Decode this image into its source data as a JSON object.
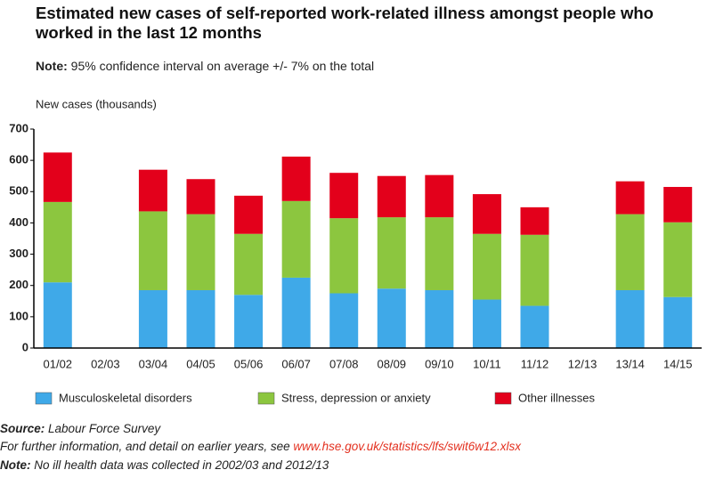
{
  "chart_data": {
    "type": "stacked-bar",
    "title": "Estimated new cases of self-reported work-related illness amongst people who worked in the last 12 months",
    "note": {
      "label": "Note:",
      "text": "95% confidence interval on average +/- 7% on the total"
    },
    "ylabel": "New cases (thousands)",
    "categories": [
      "01/02",
      "02/03",
      "03/04",
      "04/05",
      "05/06",
      "06/07",
      "07/08",
      "08/09",
      "09/10",
      "10/11",
      "11/12",
      "12/13",
      "13/14",
      "14/15"
    ],
    "series": [
      {
        "name": "Musculoskeletal disorders",
        "color": "#3fa9e8",
        "values": [
          210,
          null,
          185,
          185,
          170,
          225,
          175,
          190,
          185,
          155,
          135,
          null,
          185,
          163
        ]
      },
      {
        "name": "Stress, depression or anxiety",
        "color": "#8cc63f",
        "values": [
          257,
          null,
          252,
          243,
          195,
          245,
          240,
          228,
          233,
          210,
          227,
          null,
          243,
          239
        ]
      },
      {
        "name": "Other illnesses",
        "color": "#e3001b",
        "values": [
          158,
          null,
          133,
          112,
          122,
          142,
          145,
          132,
          135,
          127,
          88,
          null,
          105,
          113
        ]
      }
    ],
    "ylim": [
      0,
      700
    ],
    "yticks": [
      0,
      100,
      200,
      300,
      400,
      500,
      600,
      700
    ],
    "grid": false
  },
  "footer": {
    "source": {
      "label": "Source:",
      "text": "Labour Force Survey"
    },
    "info": {
      "text": "For further information, and detail on earlier years, see ",
      "link": "www.hse.gov.uk/statistics/lfs/swit6w12.xlsx"
    },
    "note": {
      "label": "Note:",
      "text": "No ill health data was collected in 2002/03 and 2012/13"
    }
  }
}
